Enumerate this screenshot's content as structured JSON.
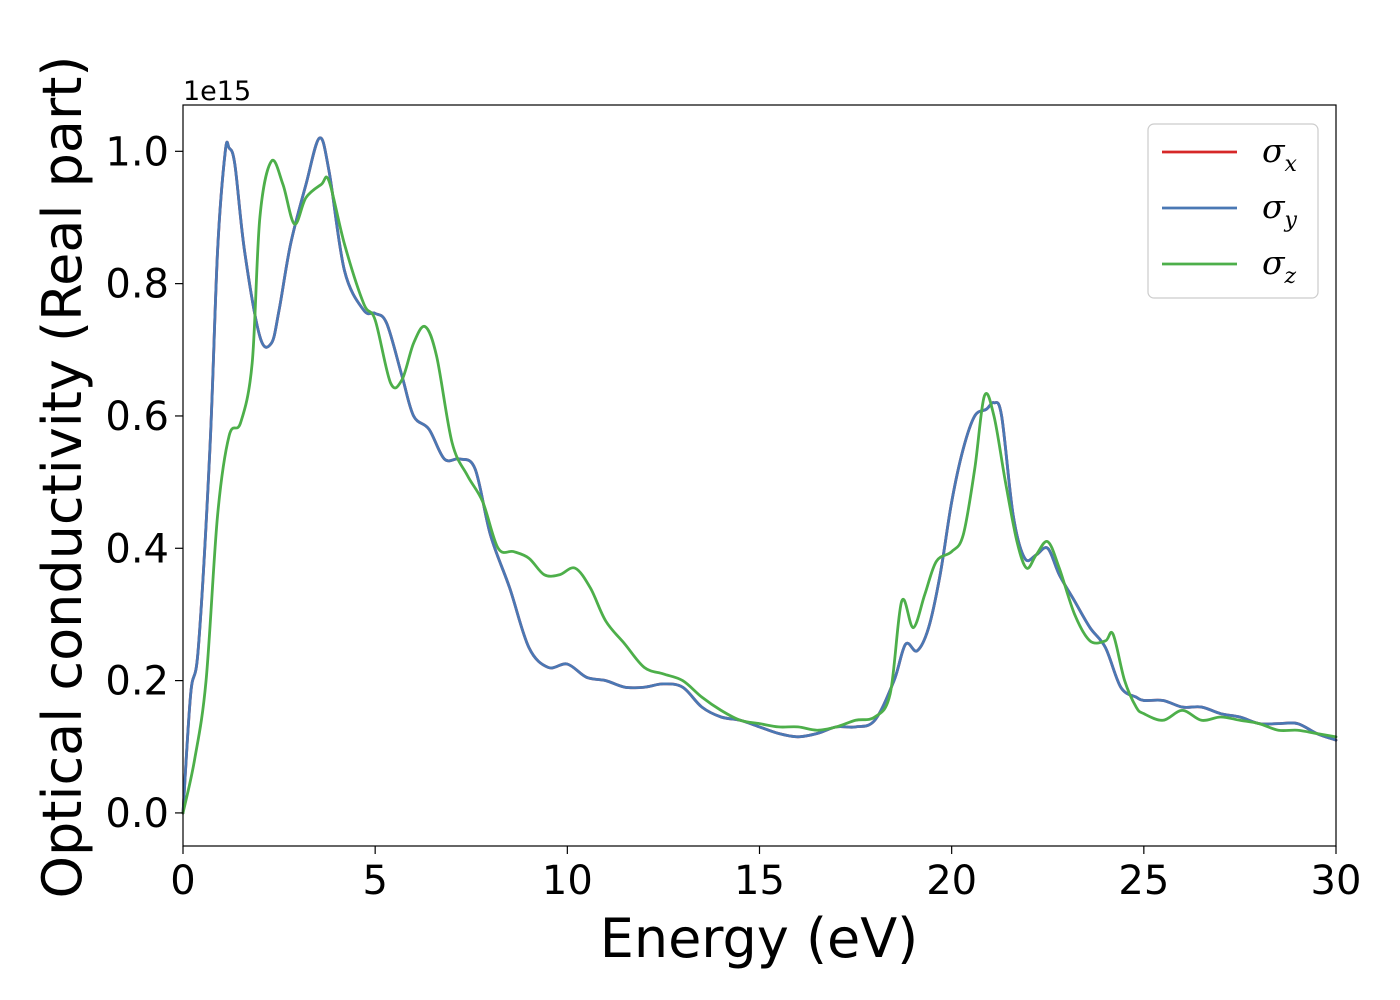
{
  "chart_data": {
    "type": "line",
    "title": "",
    "xlabel": "Energy (eV)",
    "ylabel": "Optical conductivity (Real part)",
    "y_offset_text": "1e15",
    "xlim": [
      0,
      30
    ],
    "ylim": [
      -0.05,
      1.07
    ],
    "xticks": [
      0,
      5,
      10,
      15,
      20,
      25,
      30
    ],
    "yticks": [
      0.0,
      0.2,
      0.4,
      0.6,
      0.8,
      1.0
    ],
    "xtick_labels": [
      "0",
      "5",
      "10",
      "15",
      "20",
      "25",
      "30"
    ],
    "ytick_labels": [
      "0.0",
      "0.2",
      "0.4",
      "0.6",
      "0.8",
      "1.0"
    ],
    "grid": false,
    "legend_position": "upper-right",
    "series": [
      {
        "name": "σx",
        "symbol": "σ",
        "subscript": "x",
        "color": "#d62728",
        "x": [
          0,
          0.2,
          0.4,
          0.7,
          0.9,
          1.1,
          1.2,
          1.35,
          1.6,
          2.0,
          2.3,
          2.5,
          2.8,
          3.2,
          3.55,
          3.8,
          4.2,
          4.7,
          5.0,
          5.3,
          5.7,
          6.0,
          6.4,
          6.8,
          7.2,
          7.6,
          8.0,
          8.5,
          9.0,
          9.5,
          10.0,
          10.5,
          11.0,
          11.5,
          12.0,
          12.5,
          13.0,
          13.5,
          14.0,
          14.5,
          15.0,
          15.5,
          16.0,
          16.5,
          17.0,
          17.5,
          18.0,
          18.5,
          18.8,
          19.1,
          19.4,
          19.7,
          20.0,
          20.3,
          20.6,
          20.9,
          21.1,
          21.3,
          21.6,
          21.9,
          22.2,
          22.5,
          22.8,
          23.2,
          23.6,
          24.0,
          24.4,
          24.8,
          25.0,
          25.5,
          26.0,
          26.5,
          27.0,
          27.5,
          28.0,
          28.5,
          29.0,
          29.5,
          30.0
        ],
        "y": [
          0,
          0.18,
          0.25,
          0.55,
          0.85,
          1.0,
          1.005,
          0.98,
          0.85,
          0.72,
          0.71,
          0.76,
          0.86,
          0.95,
          1.02,
          0.97,
          0.82,
          0.76,
          0.755,
          0.74,
          0.66,
          0.6,
          0.58,
          0.535,
          0.535,
          0.52,
          0.42,
          0.34,
          0.25,
          0.22,
          0.225,
          0.205,
          0.2,
          0.19,
          0.19,
          0.195,
          0.19,
          0.16,
          0.145,
          0.14,
          0.13,
          0.12,
          0.115,
          0.12,
          0.13,
          0.13,
          0.14,
          0.2,
          0.255,
          0.245,
          0.28,
          0.36,
          0.47,
          0.55,
          0.6,
          0.61,
          0.62,
          0.6,
          0.45,
          0.385,
          0.39,
          0.4,
          0.36,
          0.32,
          0.28,
          0.25,
          0.19,
          0.175,
          0.17,
          0.17,
          0.16,
          0.16,
          0.15,
          0.145,
          0.135,
          0.135,
          0.135,
          0.12,
          0.11
        ]
      },
      {
        "name": "σy",
        "symbol": "σ",
        "subscript": "y",
        "color": "#4a78b4",
        "x": [
          0,
          0.2,
          0.4,
          0.7,
          0.9,
          1.1,
          1.2,
          1.35,
          1.6,
          2.0,
          2.3,
          2.5,
          2.8,
          3.2,
          3.55,
          3.8,
          4.2,
          4.7,
          5.0,
          5.3,
          5.7,
          6.0,
          6.4,
          6.8,
          7.2,
          7.6,
          8.0,
          8.5,
          9.0,
          9.5,
          10.0,
          10.5,
          11.0,
          11.5,
          12.0,
          12.5,
          13.0,
          13.5,
          14.0,
          14.5,
          15.0,
          15.5,
          16.0,
          16.5,
          17.0,
          17.5,
          18.0,
          18.5,
          18.8,
          19.1,
          19.4,
          19.7,
          20.0,
          20.3,
          20.6,
          20.9,
          21.1,
          21.3,
          21.6,
          21.9,
          22.2,
          22.5,
          22.8,
          23.2,
          23.6,
          24.0,
          24.4,
          24.8,
          25.0,
          25.5,
          26.0,
          26.5,
          27.0,
          27.5,
          28.0,
          28.5,
          29.0,
          29.5,
          30.0
        ],
        "y": [
          0,
          0.18,
          0.25,
          0.55,
          0.85,
          1.0,
          1.005,
          0.98,
          0.85,
          0.72,
          0.71,
          0.76,
          0.86,
          0.95,
          1.02,
          0.97,
          0.82,
          0.76,
          0.755,
          0.74,
          0.66,
          0.6,
          0.58,
          0.535,
          0.535,
          0.52,
          0.42,
          0.34,
          0.25,
          0.22,
          0.225,
          0.205,
          0.2,
          0.19,
          0.19,
          0.195,
          0.19,
          0.16,
          0.145,
          0.14,
          0.13,
          0.12,
          0.115,
          0.12,
          0.13,
          0.13,
          0.14,
          0.2,
          0.255,
          0.245,
          0.28,
          0.36,
          0.47,
          0.55,
          0.6,
          0.61,
          0.62,
          0.6,
          0.45,
          0.385,
          0.39,
          0.4,
          0.36,
          0.32,
          0.28,
          0.25,
          0.19,
          0.175,
          0.17,
          0.17,
          0.16,
          0.16,
          0.15,
          0.145,
          0.135,
          0.135,
          0.135,
          0.12,
          0.11
        ]
      },
      {
        "name": "σz",
        "symbol": "σ",
        "subscript": "z",
        "color": "#4daf4a",
        "x": [
          0,
          0.3,
          0.6,
          0.9,
          1.2,
          1.5,
          1.8,
          2.0,
          2.3,
          2.6,
          2.9,
          3.2,
          3.6,
          3.8,
          4.2,
          4.7,
          5.0,
          5.4,
          5.7,
          6.0,
          6.3,
          6.6,
          7.0,
          7.4,
          7.8,
          8.2,
          8.6,
          9.0,
          9.4,
          9.8,
          10.2,
          10.6,
          11.0,
          11.5,
          12.0,
          12.5,
          13.0,
          13.5,
          14.0,
          14.5,
          15.0,
          15.5,
          16.0,
          16.5,
          17.0,
          17.5,
          18.0,
          18.4,
          18.7,
          19.0,
          19.3,
          19.6,
          20.0,
          20.3,
          20.6,
          20.85,
          21.1,
          21.4,
          21.7,
          21.95,
          22.2,
          22.5,
          22.8,
          23.2,
          23.6,
          24.0,
          24.2,
          24.5,
          24.8,
          25.0,
          25.5,
          26.0,
          26.5,
          27.0,
          27.5,
          28.0,
          28.5,
          29.0,
          29.5,
          30.0
        ],
        "y": [
          0,
          0.08,
          0.2,
          0.45,
          0.57,
          0.59,
          0.68,
          0.9,
          0.985,
          0.95,
          0.89,
          0.93,
          0.95,
          0.955,
          0.86,
          0.77,
          0.745,
          0.65,
          0.655,
          0.71,
          0.735,
          0.69,
          0.56,
          0.51,
          0.47,
          0.4,
          0.395,
          0.385,
          0.36,
          0.36,
          0.37,
          0.34,
          0.29,
          0.255,
          0.22,
          0.21,
          0.2,
          0.175,
          0.155,
          0.14,
          0.135,
          0.13,
          0.13,
          0.125,
          0.13,
          0.14,
          0.145,
          0.18,
          0.32,
          0.28,
          0.33,
          0.38,
          0.395,
          0.42,
          0.52,
          0.63,
          0.6,
          0.5,
          0.41,
          0.37,
          0.39,
          0.41,
          0.37,
          0.3,
          0.26,
          0.26,
          0.27,
          0.2,
          0.16,
          0.15,
          0.14,
          0.155,
          0.14,
          0.145,
          0.14,
          0.135,
          0.125,
          0.125,
          0.12,
          0.115
        ]
      }
    ]
  }
}
